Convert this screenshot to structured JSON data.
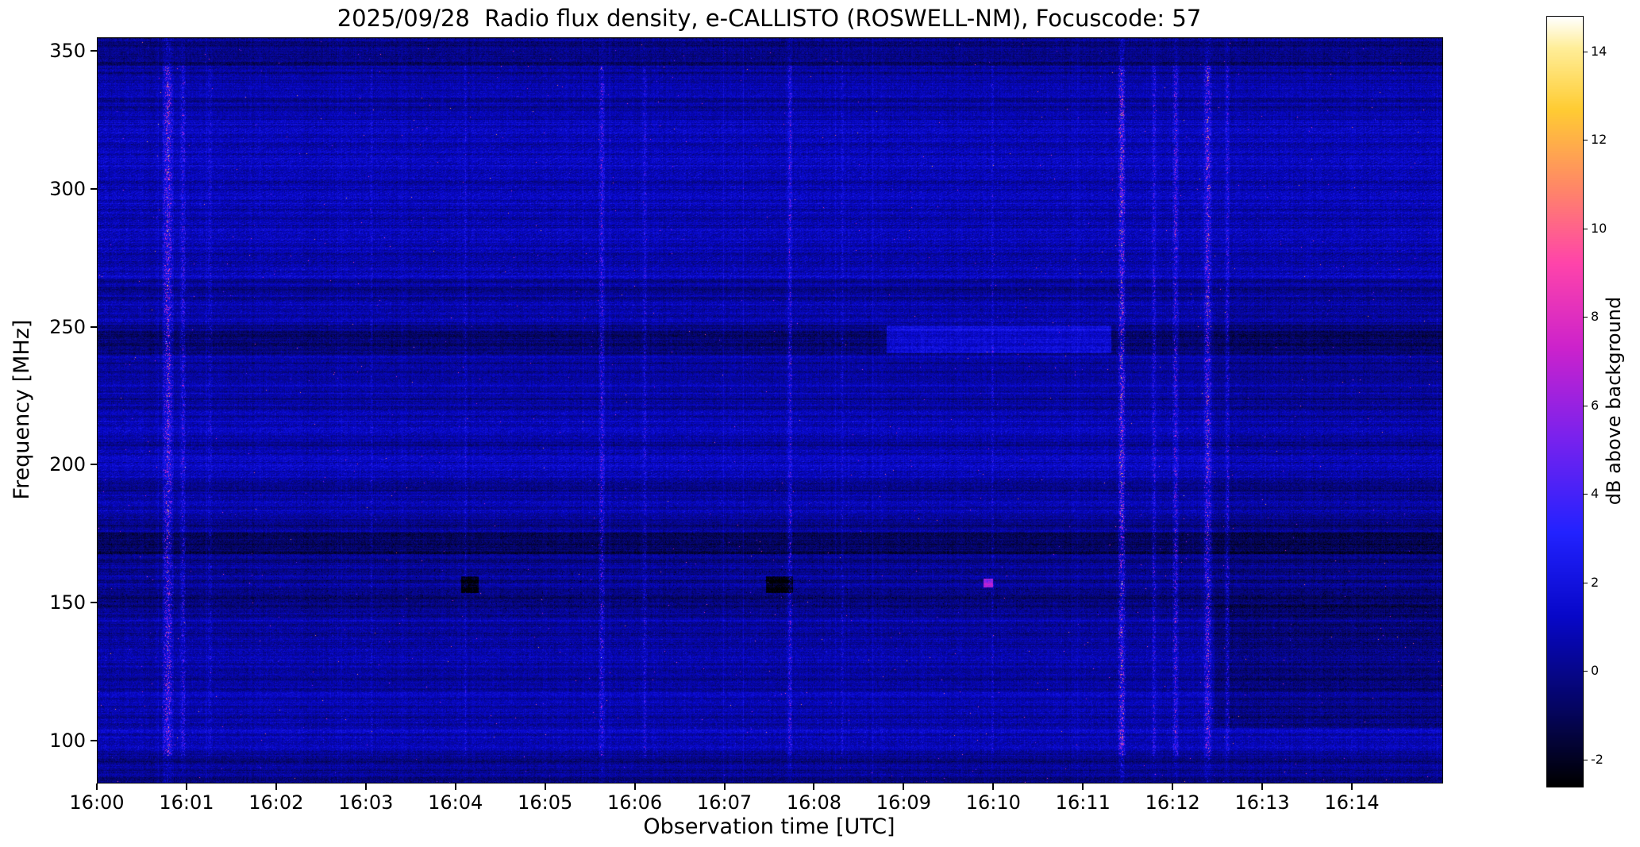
{
  "meta": {
    "date": "2025/09/28",
    "instrument": "e-CALLISTO",
    "station": "ROSWELL-NM",
    "focuscode": "57"
  },
  "chart_data": {
    "type": "heatmap",
    "title": "2025/09/28  Radio flux density, e-CALLISTO (ROSWELL-NM), Focuscode: 57",
    "xlabel": "Observation time [UTC]",
    "ylabel": "Frequency [MHz]",
    "x_ticks": [
      "16:00",
      "16:01",
      "16:02",
      "16:03",
      "16:04",
      "16:05",
      "16:06",
      "16:07",
      "16:08",
      "16:09",
      "16:10",
      "16:11",
      "16:12",
      "16:13",
      "16:14"
    ],
    "x_tick_minutes": [
      0,
      1,
      2,
      3,
      4,
      5,
      6,
      7,
      8,
      9,
      10,
      11,
      12,
      13,
      14
    ],
    "x_range_minutes": [
      0,
      15
    ],
    "y_ticks": [
      350,
      300,
      250,
      200,
      150,
      100
    ],
    "y_range_mhz": [
      85,
      355
    ],
    "grid": false,
    "colorbar": {
      "label": "dB above background",
      "ticks": [
        14,
        12,
        10,
        8,
        6,
        4,
        2,
        0,
        -2
      ],
      "vmin": -2.6,
      "vmax": 14.8,
      "position": "right"
    },
    "colormap_stops": [
      [
        0.0,
        "#000000"
      ],
      [
        0.1,
        "#050560"
      ],
      [
        0.22,
        "#0707c8"
      ],
      [
        0.33,
        "#2222ff"
      ],
      [
        0.45,
        "#7722ee"
      ],
      [
        0.57,
        "#cc22cc"
      ],
      [
        0.68,
        "#ff44aa"
      ],
      [
        0.78,
        "#ff8866"
      ],
      [
        0.88,
        "#ffcc33"
      ],
      [
        0.96,
        "#ffee99"
      ],
      [
        1.0,
        "#ffffff"
      ]
    ],
    "background": {
      "mean_db": 0.35,
      "noise_db": 0.85
    },
    "bands": [
      {
        "f": [
          345,
          356
        ],
        "boost": -0.7,
        "pattern": "flat",
        "note": "dark band at top edge"
      },
      {
        "f": [
          268,
          324
        ],
        "boost": 0.9,
        "pattern": "hatch",
        "note": "bright mottled region 270-320 MHz"
      },
      {
        "f": [
          252,
          262
        ],
        "boost": 0.45,
        "pattern": "hatch"
      },
      {
        "f": [
          240,
          249
        ],
        "boost": -0.9,
        "pattern": "flat",
        "note": "dark band near 245 MHz"
      },
      {
        "f": [
          210,
          221
        ],
        "boost": 0.5,
        "pattern": "hatch"
      },
      {
        "f": [
          194,
          206
        ],
        "boost": 0.8,
        "pattern": "hatch",
        "note": "bright band near 200 MHz"
      },
      {
        "f": [
          181,
          190
        ],
        "boost": 0.45,
        "pattern": "hatch"
      },
      {
        "f": [
          168,
          176
        ],
        "boost": -1.1,
        "pattern": "flat",
        "note": "dark band near 172 MHz"
      },
      {
        "f": [
          146,
          163
        ],
        "boost": -0.35,
        "pattern": "blobs",
        "note": "dark speckled band 150-160 MHz"
      },
      {
        "f": [
          128,
          142
        ],
        "boost": 0.3,
        "pattern": "hatch"
      },
      {
        "f": [
          96,
          112
        ],
        "boost": 0.35,
        "pattern": "hatch"
      },
      {
        "f": [
          85,
          95
        ],
        "boost": -0.5,
        "pattern": "flat"
      }
    ],
    "patches": [
      {
        "t": [
          8.8,
          11.3
        ],
        "f": [
          241,
          251
        ],
        "boost": 2.0,
        "note": "bright blue smear near 245 MHz, 16:09-16:11"
      },
      {
        "t": [
          12.45,
          15
        ],
        "f": [
          105,
          150
        ],
        "boost": -0.8,
        "note": "darker bottom-right region after 16:12.5"
      },
      {
        "t": [
          12.45,
          15
        ],
        "f": [
          150,
          260
        ],
        "boost": -0.3
      },
      {
        "t": [
          4.05,
          4.25
        ],
        "f": [
          154,
          160
        ],
        "boost": -2.5,
        "note": "dark blob near 16:04"
      },
      {
        "t": [
          7.45,
          7.75
        ],
        "f": [
          154,
          160
        ],
        "boost": -2.5,
        "note": "dark blob near 16:07.5"
      },
      {
        "t": [
          9.88,
          9.98
        ],
        "f": [
          156,
          159
        ],
        "boost": 6.0,
        "note": "bright pink dots near 16:10, 157 MHz"
      }
    ],
    "streaks": [
      {
        "t": 0.78,
        "w": 0.07,
        "amp": 9.0,
        "note": "strong RFI burst just before 16:01"
      },
      {
        "t": 0.95,
        "w": 0.04,
        "amp": 5.0
      },
      {
        "t": 1.25,
        "w": 0.03,
        "amp": 3.0
      },
      {
        "t": 3.05,
        "w": 0.02,
        "amp": 2.5
      },
      {
        "t": 4.1,
        "w": 0.02,
        "amp": 2.5
      },
      {
        "t": 5.62,
        "w": 0.04,
        "amp": 6.0,
        "note": "burst near 16:05.6"
      },
      {
        "t": 6.1,
        "w": 0.03,
        "amp": 4.0
      },
      {
        "t": 7.72,
        "w": 0.03,
        "amp": 6.0,
        "note": "burst near 16:07.7"
      },
      {
        "t": 8.3,
        "w": 0.02,
        "amp": 3.0
      },
      {
        "t": 9.98,
        "w": 0.02,
        "amp": 3.0
      },
      {
        "t": 11.42,
        "w": 0.05,
        "amp": 10.0,
        "note": "strongest RFI burst near 16:11.4"
      },
      {
        "t": 11.78,
        "w": 0.03,
        "amp": 5.0
      },
      {
        "t": 12.02,
        "w": 0.04,
        "amp": 7.0
      },
      {
        "t": 12.38,
        "w": 0.05,
        "amp": 9.0,
        "note": "strong burst near 16:12.4"
      },
      {
        "t": 12.6,
        "w": 0.03,
        "amp": 5.0
      }
    ],
    "rfi_dot_probability": 0.0006
  }
}
